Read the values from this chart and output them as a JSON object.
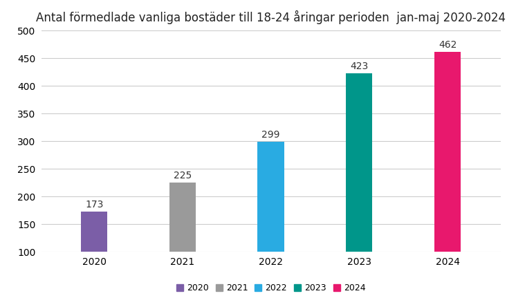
{
  "title": "Antal förmedlade vanliga bostäder till 18-24 åringar perioden  jan-maj 2020-2024",
  "categories": [
    "2020",
    "2021",
    "2022",
    "2023",
    "2024"
  ],
  "values": [
    173,
    225,
    299,
    423,
    462
  ],
  "bar_colors": [
    "#7B5EA7",
    "#9A9A9A",
    "#29ABE2",
    "#00968A",
    "#E8186D"
  ],
  "ylim": [
    100,
    500
  ],
  "yticks": [
    100,
    150,
    200,
    250,
    300,
    350,
    400,
    450,
    500
  ],
  "legend_labels": [
    "2020",
    "2021",
    "2022",
    "2023",
    "2024"
  ],
  "background_color": "#ffffff",
  "grid_color": "#cccccc",
  "title_fontsize": 12,
  "label_fontsize": 10,
  "tick_fontsize": 10,
  "legend_fontsize": 9,
  "bar_width": 0.3
}
